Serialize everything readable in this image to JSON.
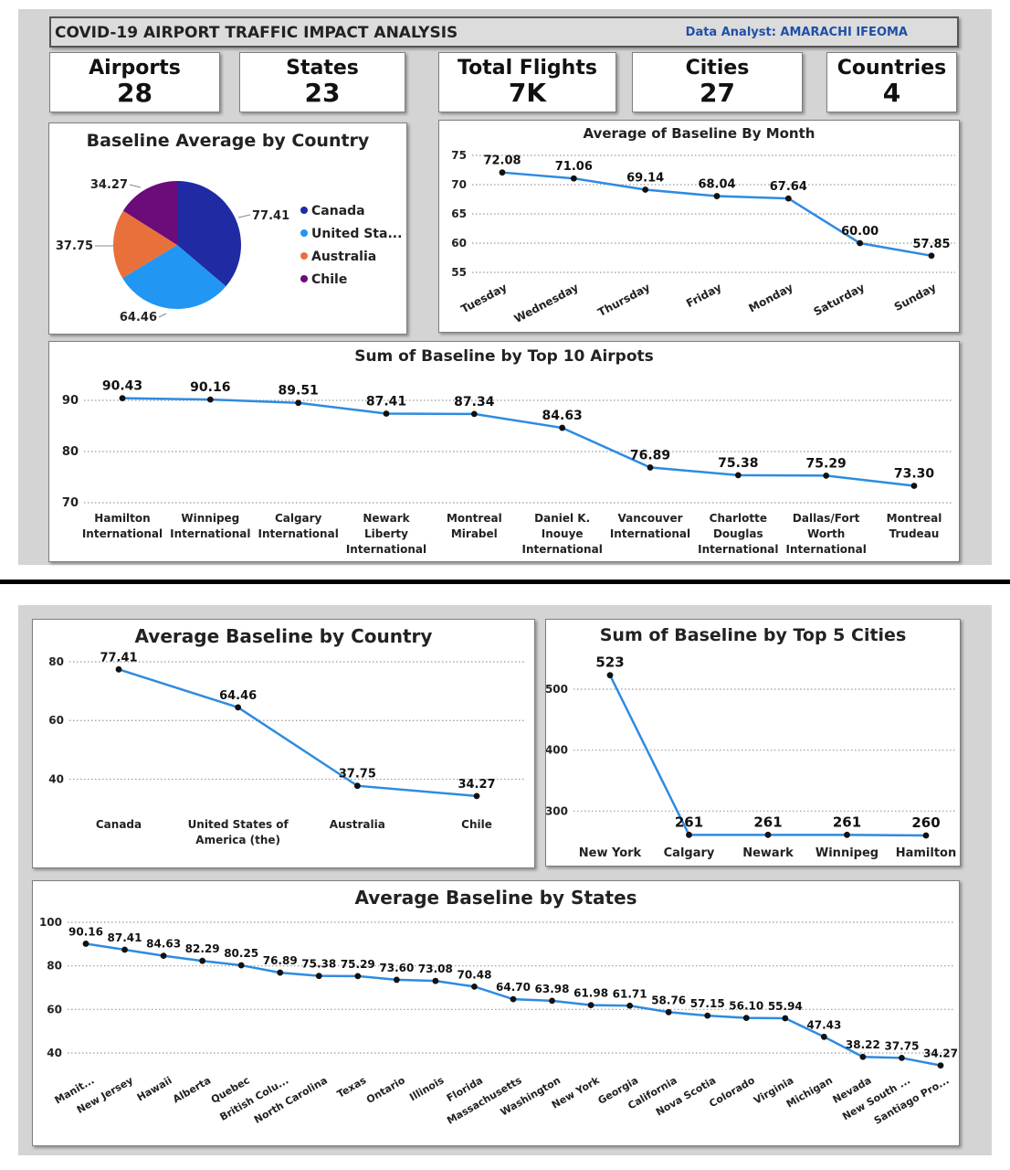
{
  "header": {
    "title": "COVID-19 AIRPORT TRAFFIC IMPACT ANALYSIS",
    "analyst": "Data Analyst: AMARACHI IFEOMA"
  },
  "kpis": [
    {
      "label": "Airports",
      "value": "28"
    },
    {
      "label": "States",
      "value": "23"
    },
    {
      "label": "Total Flights",
      "value": "7K"
    },
    {
      "label": "Cities",
      "value": "27"
    },
    {
      "label": "Countries",
      "value": "4"
    }
  ],
  "colors": {
    "line": "#2e8be0",
    "pie": [
      "#1f2aa3",
      "#2196f3",
      "#e8703a",
      "#6b0c7a"
    ],
    "grey_bg": "#d4d4d4"
  },
  "chart_data": [
    {
      "id": "pie",
      "type": "pie",
      "title": "Baseline Average by Country",
      "categories": [
        "Canada",
        "United Sta...",
        "Australia",
        "Chile"
      ],
      "values": [
        77.41,
        64.46,
        37.75,
        34.27
      ],
      "value_labels": [
        "77.41",
        "64.46",
        "37.75",
        "34.27"
      ],
      "legend": "right"
    },
    {
      "id": "month",
      "type": "line",
      "title": "Average of Baseline By Month",
      "categories": [
        "Tuesday",
        "Wednesday",
        "Thursday",
        "Friday",
        "Monday",
        "Saturday",
        "Sunday"
      ],
      "values": [
        72.08,
        71.06,
        69.14,
        68.04,
        67.64,
        60.0,
        57.85
      ],
      "value_labels": [
        "72.08",
        "71.06",
        "69.14",
        "68.04",
        "67.64",
        "60.00",
        "57.85"
      ],
      "yticks": [
        55,
        60,
        65,
        70,
        75
      ],
      "ylim": [
        55,
        75
      ],
      "grid": true
    },
    {
      "id": "airports",
      "type": "line",
      "title": "Sum of Baseline by Top 10 Airpots",
      "categories": [
        "Hamilton International",
        "Winnipeg International",
        "Calgary International",
        "Newark Liberty International",
        "Montreal Mirabel",
        "Daniel K. Inouye International",
        "Vancouver International",
        "Charlotte Douglas International",
        "Dallas/Fort Worth International",
        "Montreal Trudeau"
      ],
      "values": [
        90.43,
        90.16,
        89.51,
        87.41,
        87.34,
        84.63,
        76.89,
        75.38,
        75.29,
        73.3
      ],
      "value_labels": [
        "90.43",
        "90.16",
        "89.51",
        "87.41",
        "87.34",
        "84.63",
        "76.89",
        "75.38",
        "75.29",
        "73.30"
      ],
      "yticks": [
        70,
        80,
        90
      ],
      "ylim": [
        70,
        90
      ],
      "grid": true
    },
    {
      "id": "country",
      "type": "line",
      "title": "Average Baseline by Country",
      "categories": [
        "Canada",
        "United States of America (the)",
        "Australia",
        "Chile"
      ],
      "values": [
        77.41,
        64.46,
        37.75,
        34.27
      ],
      "value_labels": [
        "77.41",
        "64.46",
        "37.75",
        "34.27"
      ],
      "yticks": [
        40,
        60,
        80
      ],
      "ylim": [
        28,
        80
      ],
      "grid": true
    },
    {
      "id": "cities",
      "type": "line",
      "title": "Sum of Baseline by Top 5 Cities",
      "categories": [
        "New York",
        "Calgary",
        "Newark",
        "Winnipeg",
        "Hamilton"
      ],
      "values": [
        523,
        261,
        261,
        261,
        260
      ],
      "value_labels": [
        "523",
        "261",
        "261",
        "261",
        "260"
      ],
      "yticks": [
        300,
        400,
        500
      ],
      "ylim": [
        260,
        500
      ],
      "grid": true
    },
    {
      "id": "states",
      "type": "line",
      "title": "Average Baseline by States",
      "categories": [
        "Manit...",
        "New Jersey",
        "Hawaii",
        "Alberta",
        "Quebec",
        "British Colu...",
        "North Carolina",
        "Texas",
        "Ontario",
        "Illinois",
        "Florida",
        "Massachusetts",
        "Washington",
        "New York",
        "Georgia",
        "California",
        "Nova Scotia",
        "Colorado",
        "Virginia",
        "Michigan",
        "Nevada",
        "New South ...",
        "Santiago Pro..."
      ],
      "values": [
        90.16,
        87.41,
        84.63,
        82.29,
        80.25,
        76.89,
        75.38,
        75.29,
        73.6,
        73.08,
        70.48,
        64.7,
        63.98,
        61.98,
        61.71,
        58.76,
        57.15,
        56.1,
        55.94,
        47.43,
        38.22,
        37.75,
        34.27
      ],
      "value_labels": [
        "90.16",
        "87.41",
        "84.63",
        "82.29",
        "80.25",
        "76.89",
        "75.38",
        "75.29",
        "73.60",
        "73.08",
        "70.48",
        "64.70",
        "63.98",
        "61.98",
        "61.71",
        "58.76",
        "57.15",
        "56.10",
        "55.94",
        "47.43",
        "38.22",
        "37.75",
        "34.27"
      ],
      "yticks": [
        40,
        60,
        80,
        100
      ],
      "ylim": [
        40,
        100
      ],
      "grid": true
    }
  ]
}
